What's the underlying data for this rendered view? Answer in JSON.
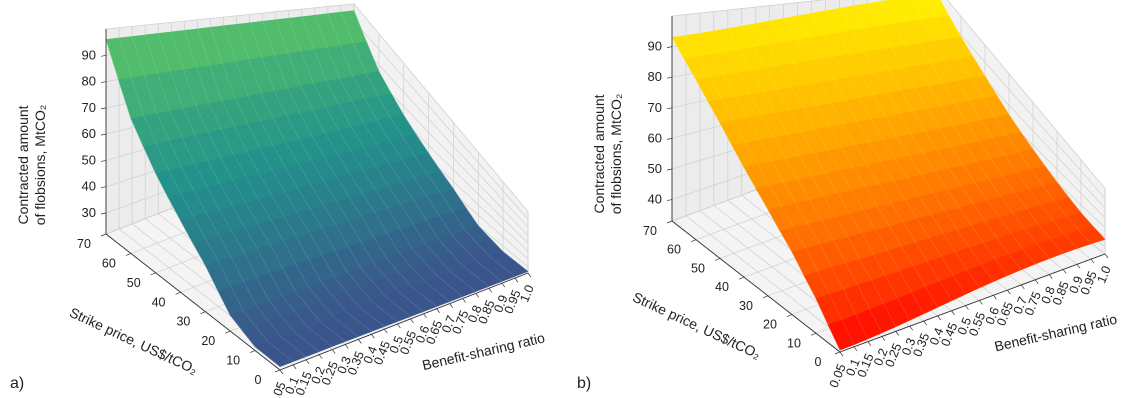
{
  "chart_data": [
    {
      "type": "surface",
      "panel_label": "a)",
      "colormap": "viridis",
      "zlabel_line1": "Contracted amount",
      "zlabel_line2": "of flobsions, MtCO₂",
      "xlabel": "Benefit-sharing ratio",
      "ylabel": "Strike price, US$/tCO₂",
      "x_ticks": [
        "0.05",
        "0.1",
        "0.15",
        "0.2",
        "0.25",
        "0.3",
        "0.35",
        "0.4",
        "0.45",
        "0.5",
        "0.55",
        "0.6",
        "0.65",
        "0.7",
        "0.75",
        "0.8",
        "0.85",
        "0.9",
        "0.95",
        "1.0"
      ],
      "y_ticks": [
        "0",
        "10",
        "20",
        "30",
        "40",
        "50",
        "60",
        "70"
      ],
      "z_ticks": [
        "30",
        "40",
        "50",
        "60",
        "70",
        "80",
        "90"
      ],
      "xlim": [
        0.05,
        1.0
      ],
      "ylim": [
        0,
        70
      ],
      "zlim": [
        22,
        100
      ],
      "y": [
        0,
        10,
        20,
        30,
        40,
        50,
        60,
        70
      ],
      "z_at_y": [
        24,
        24,
        30,
        44,
        54,
        64,
        76,
        96
      ],
      "z_depends_on_x": false
    },
    {
      "type": "surface",
      "panel_label": "b)",
      "colormap": "autumn",
      "zlabel_line1": "Contracted amount",
      "zlabel_line2": "of flobsions, MtCO₂",
      "xlabel": "Benefit-sharing ratio",
      "ylabel": "Strike price, US$/tCO₂",
      "x_ticks": [
        "0.05",
        "0.1",
        "0.15",
        "0.2",
        "0.25",
        "0.3",
        "0.35",
        "0.4",
        "0.45",
        "0.5",
        "0.55",
        "0.6",
        "0.65",
        "0.7",
        "0.75",
        "0.8",
        "0.85",
        "0.9",
        "0.95",
        "1.0"
      ],
      "y_ticks": [
        "0",
        "10",
        "20",
        "30",
        "40",
        "50",
        "60",
        "70"
      ],
      "z_ticks": [
        "40",
        "50",
        "60",
        "70",
        "80",
        "90"
      ],
      "xlim": [
        0.05,
        1.0
      ],
      "ylim": [
        0,
        70
      ],
      "zlim": [
        33,
        100
      ],
      "y": [
        0,
        10,
        20,
        30,
        40,
        50,
        60,
        70
      ],
      "z_at_y_x_low": [
        34,
        49,
        60,
        68,
        75,
        82,
        88,
        93
      ],
      "z_at_y_x_high": [
        48,
        53,
        60,
        67,
        74,
        82,
        89,
        97
      ],
      "z_depends_on_x": true
    }
  ]
}
